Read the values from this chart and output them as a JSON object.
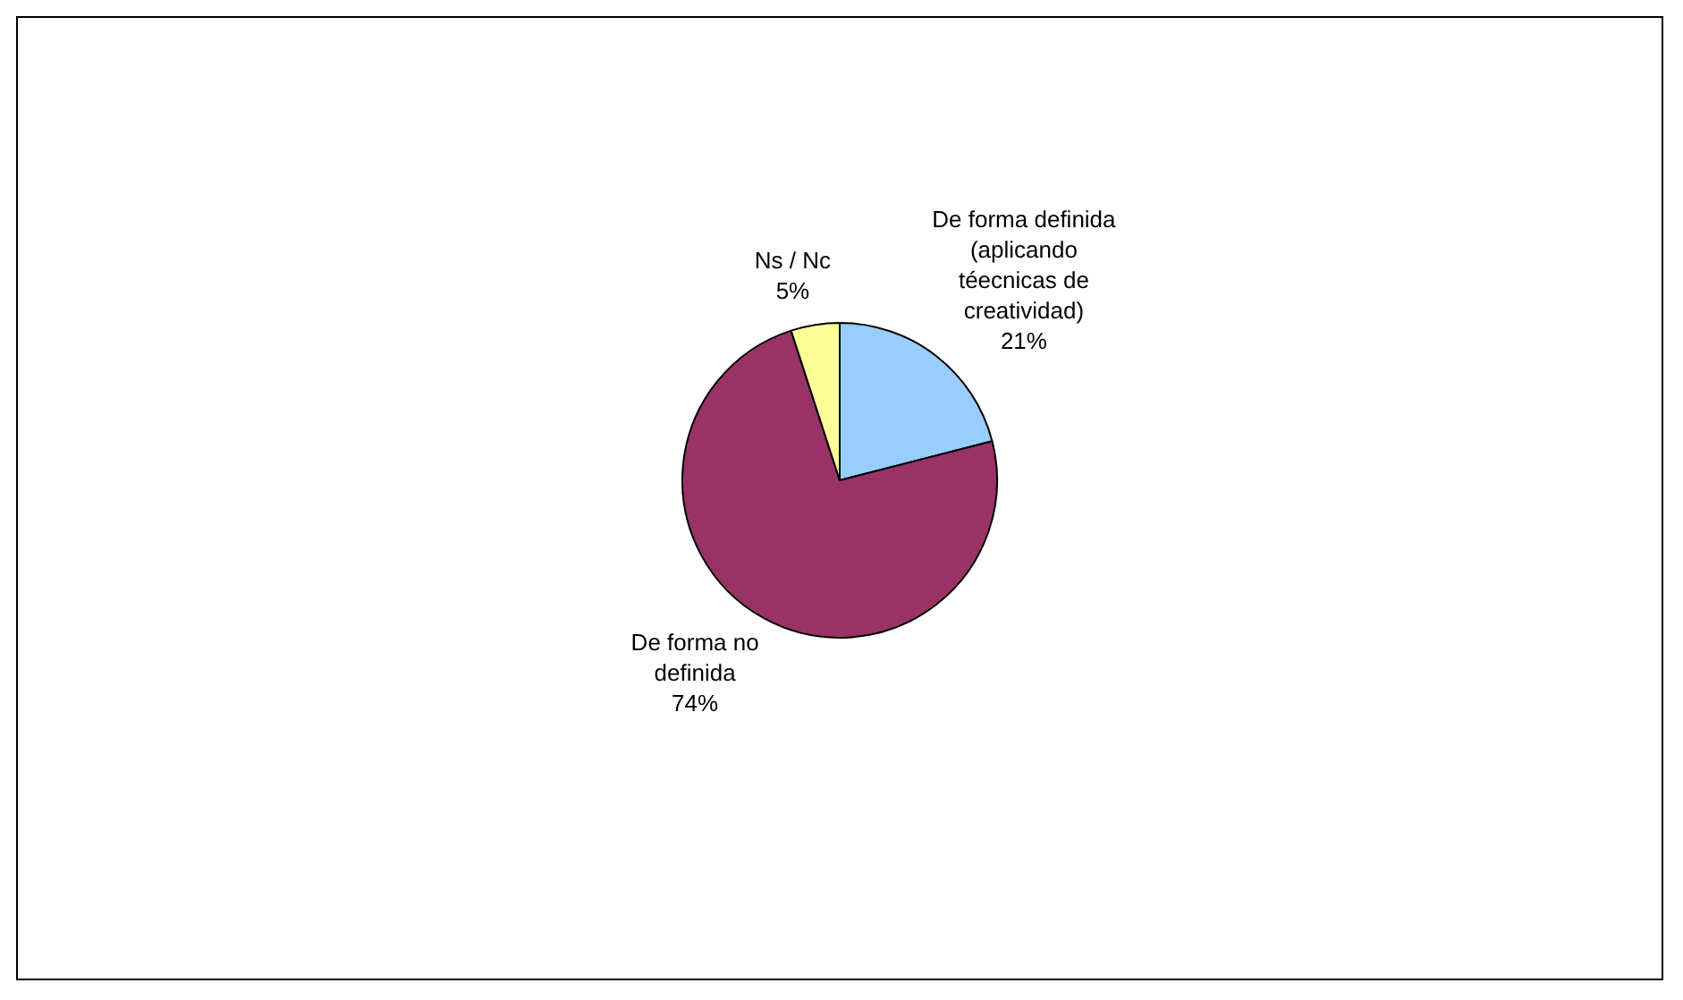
{
  "chart_data": {
    "type": "pie",
    "categories": [
      "De forma definida (aplicando téecnicas de creatividad)",
      "De forma no definida",
      "Ns / Nc"
    ],
    "values": [
      21,
      74,
      5
    ],
    "colors": [
      "#99ccff",
      "#993366",
      "#ffff99"
    ],
    "value_labels": [
      "21%",
      "74%",
      "5%"
    ],
    "legend": false
  }
}
